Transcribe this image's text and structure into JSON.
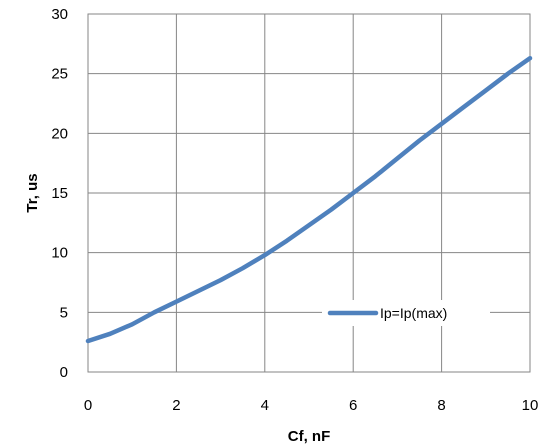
{
  "chart_data": {
    "type": "line",
    "xlabel": "Cf, nF",
    "ylabel": "Tr, us",
    "xlim": [
      0,
      10
    ],
    "ylim": [
      0,
      30
    ],
    "x_ticks": [
      "0",
      "2",
      "4",
      "6",
      "8",
      "10"
    ],
    "y_ticks": [
      "0",
      "5",
      "10",
      "15",
      "20",
      "25",
      "30"
    ],
    "grid": true,
    "legend_position": "inside-lower-right",
    "series": [
      {
        "name": "Ip=Ip(max)",
        "color": "#4F81BD",
        "x": [
          0,
          0.5,
          1,
          1.5,
          2,
          2.5,
          3,
          3.5,
          4,
          4.5,
          5,
          5.5,
          6,
          6.5,
          7,
          7.5,
          8,
          8.5,
          9,
          9.5,
          10
        ],
        "y": [
          2.6,
          3.2,
          4.0,
          5.0,
          5.9,
          6.8,
          7.7,
          8.7,
          9.8,
          11.0,
          12.3,
          13.6,
          15.0,
          16.4,
          17.9,
          19.4,
          20.8,
          22.2,
          23.6,
          25.0,
          26.3
        ]
      }
    ]
  }
}
